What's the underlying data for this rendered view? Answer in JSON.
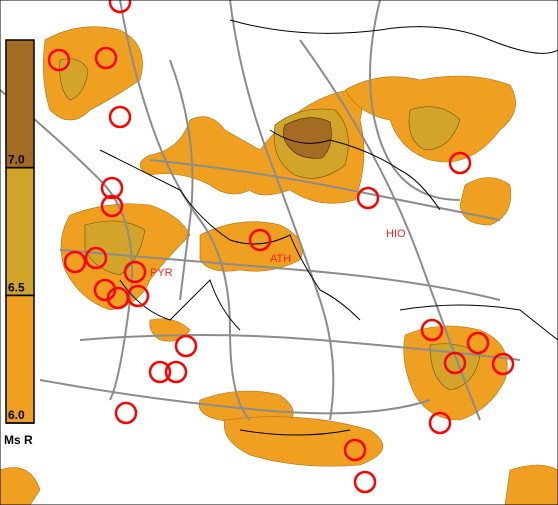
{
  "legend": {
    "title": "Ms R",
    "ticks": [
      {
        "value": 6,
        "label": "6.0"
      },
      {
        "value": 6.5,
        "label": "6.5"
      },
      {
        "value": 7,
        "label": "7.0"
      }
    ],
    "colors": [
      "#f0a020",
      "#d2a52a",
      "#a46c22"
    ]
  },
  "cities": [
    {
      "label": "ATH"
    },
    {
      "label": "PYR"
    },
    {
      "label": "HIO"
    }
  ]
}
